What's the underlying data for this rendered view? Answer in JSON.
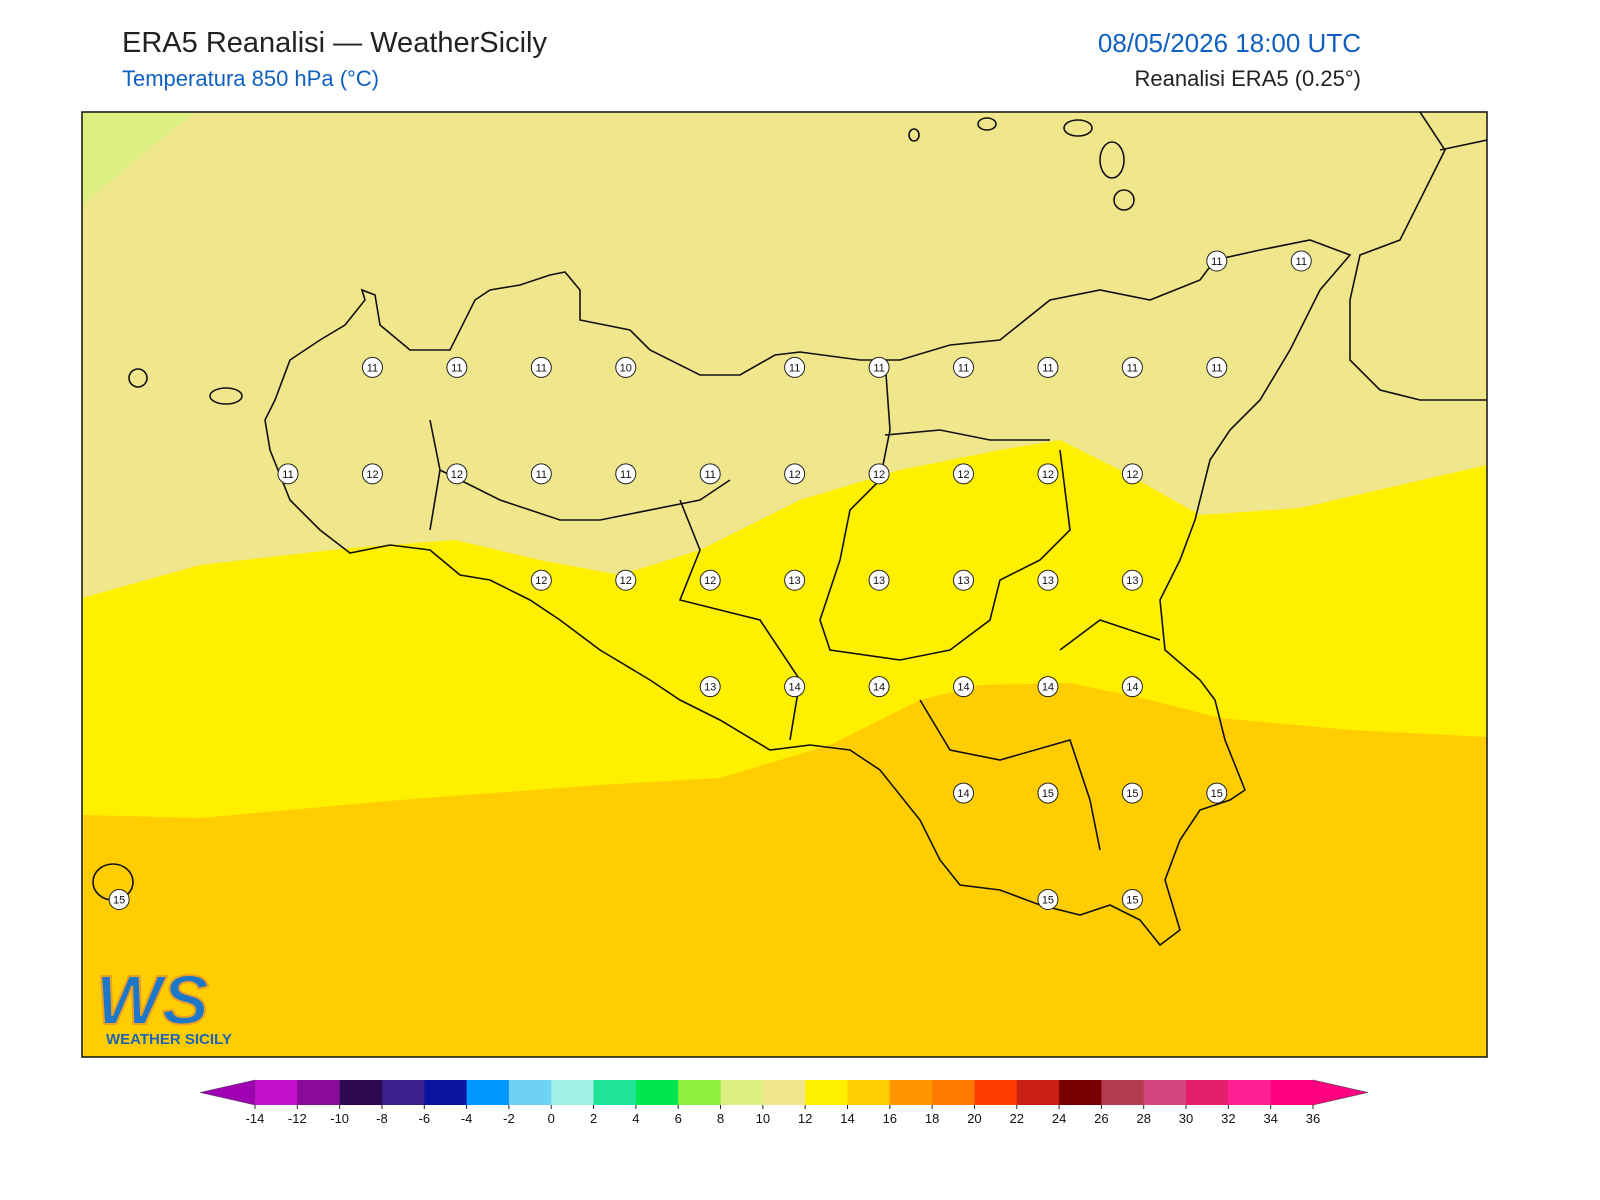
{
  "header": {
    "title": "ERA5 Reanalisi — WeatherSicily",
    "subtitle": "Temperatura 850 hPa (°C)",
    "datetime": "08/05/2026 18:00 UTC",
    "source": "Reanalisi ERA5 (0.25°)"
  },
  "map": {
    "lon": [
      11.89,
      16.05
    ],
    "lat": [
      36.63,
      38.85
    ]
  },
  "stations": [
    {
      "lon": 15.25,
      "lat": 38.5,
      "value": 11
    },
    {
      "lon": 15.5,
      "lat": 38.5,
      "value": 11
    },
    {
      "lon": 12.75,
      "lat": 38.25,
      "value": 11
    },
    {
      "lon": 13.0,
      "lat": 38.25,
      "value": 11
    },
    {
      "lon": 13.25,
      "lat": 38.25,
      "value": 11
    },
    {
      "lon": 13.5,
      "lat": 38.25,
      "value": 10
    },
    {
      "lon": 14.0,
      "lat": 38.25,
      "value": 11
    },
    {
      "lon": 14.25,
      "lat": 38.25,
      "value": 11
    },
    {
      "lon": 14.5,
      "lat": 38.25,
      "value": 11
    },
    {
      "lon": 14.75,
      "lat": 38.25,
      "value": 11
    },
    {
      "lon": 15.0,
      "lat": 38.25,
      "value": 11
    },
    {
      "lon": 15.25,
      "lat": 38.25,
      "value": 11
    },
    {
      "lon": 12.5,
      "lat": 38.0,
      "value": 11
    },
    {
      "lon": 12.75,
      "lat": 38.0,
      "value": 12
    },
    {
      "lon": 13.0,
      "lat": 38.0,
      "value": 12
    },
    {
      "lon": 13.25,
      "lat": 38.0,
      "value": 11
    },
    {
      "lon": 13.5,
      "lat": 38.0,
      "value": 11
    },
    {
      "lon": 13.75,
      "lat": 38.0,
      "value": 11
    },
    {
      "lon": 14.0,
      "lat": 38.0,
      "value": 12
    },
    {
      "lon": 14.25,
      "lat": 38.0,
      "value": 12
    },
    {
      "lon": 14.5,
      "lat": 38.0,
      "value": 12
    },
    {
      "lon": 14.75,
      "lat": 38.0,
      "value": 12
    },
    {
      "lon": 15.0,
      "lat": 38.0,
      "value": 12
    },
    {
      "lon": 13.25,
      "lat": 37.75,
      "value": 12
    },
    {
      "lon": 13.5,
      "lat": 37.75,
      "value": 12
    },
    {
      "lon": 13.75,
      "lat": 37.75,
      "value": 12
    },
    {
      "lon": 14.0,
      "lat": 37.75,
      "value": 13
    },
    {
      "lon": 14.25,
      "lat": 37.75,
      "value": 13
    },
    {
      "lon": 14.5,
      "lat": 37.75,
      "value": 13
    },
    {
      "lon": 14.75,
      "lat": 37.75,
      "value": 13
    },
    {
      "lon": 15.0,
      "lat": 37.75,
      "value": 13
    },
    {
      "lon": 13.75,
      "lat": 37.5,
      "value": 13
    },
    {
      "lon": 14.0,
      "lat": 37.5,
      "value": 14
    },
    {
      "lon": 14.25,
      "lat": 37.5,
      "value": 14
    },
    {
      "lon": 14.5,
      "lat": 37.5,
      "value": 14
    },
    {
      "lon": 14.75,
      "lat": 37.5,
      "value": 14
    },
    {
      "lon": 15.0,
      "lat": 37.5,
      "value": 14
    },
    {
      "lon": 14.5,
      "lat": 37.25,
      "value": 14
    },
    {
      "lon": 14.75,
      "lat": 37.25,
      "value": 15
    },
    {
      "lon": 15.0,
      "lat": 37.25,
      "value": 15
    },
    {
      "lon": 15.25,
      "lat": 37.25,
      "value": 15
    },
    {
      "lon": 12.0,
      "lat": 37.0,
      "value": 15
    },
    {
      "lon": 14.75,
      "lat": 37.0,
      "value": 15
    },
    {
      "lon": 15.0,
      "lat": 37.0,
      "value": 15
    }
  ],
  "colorbar": {
    "under": "#a000b4",
    "over": "#ff0080",
    "colors": [
      "#c010c8",
      "#8a0a9a",
      "#2d0a50",
      "#3c1e8c",
      "#0a14a0",
      "#0096ff",
      "#6ed2f5",
      "#a0f0e6",
      "#1ee696",
      "#00e650",
      "#8cf03c",
      "#dcf082",
      "#f0e68c",
      "#fff000",
      "#ffcd00",
      "#ff9600",
      "#ff7800",
      "#ff3c00",
      "#c81e14",
      "#780000",
      "#b43c50",
      "#d2467d",
      "#e61e6e",
      "#ff1e96",
      "#ff0080"
    ],
    "ticks": [
      -14,
      -12,
      -10,
      -8,
      -6,
      -4,
      -2,
      0,
      2,
      4,
      6,
      8,
      10,
      12,
      14,
      16,
      18,
      20,
      22,
      24,
      26,
      28,
      30,
      32,
      34,
      36
    ]
  },
  "logo": {
    "mark": "WS",
    "name": "WEATHER SICILY"
  }
}
